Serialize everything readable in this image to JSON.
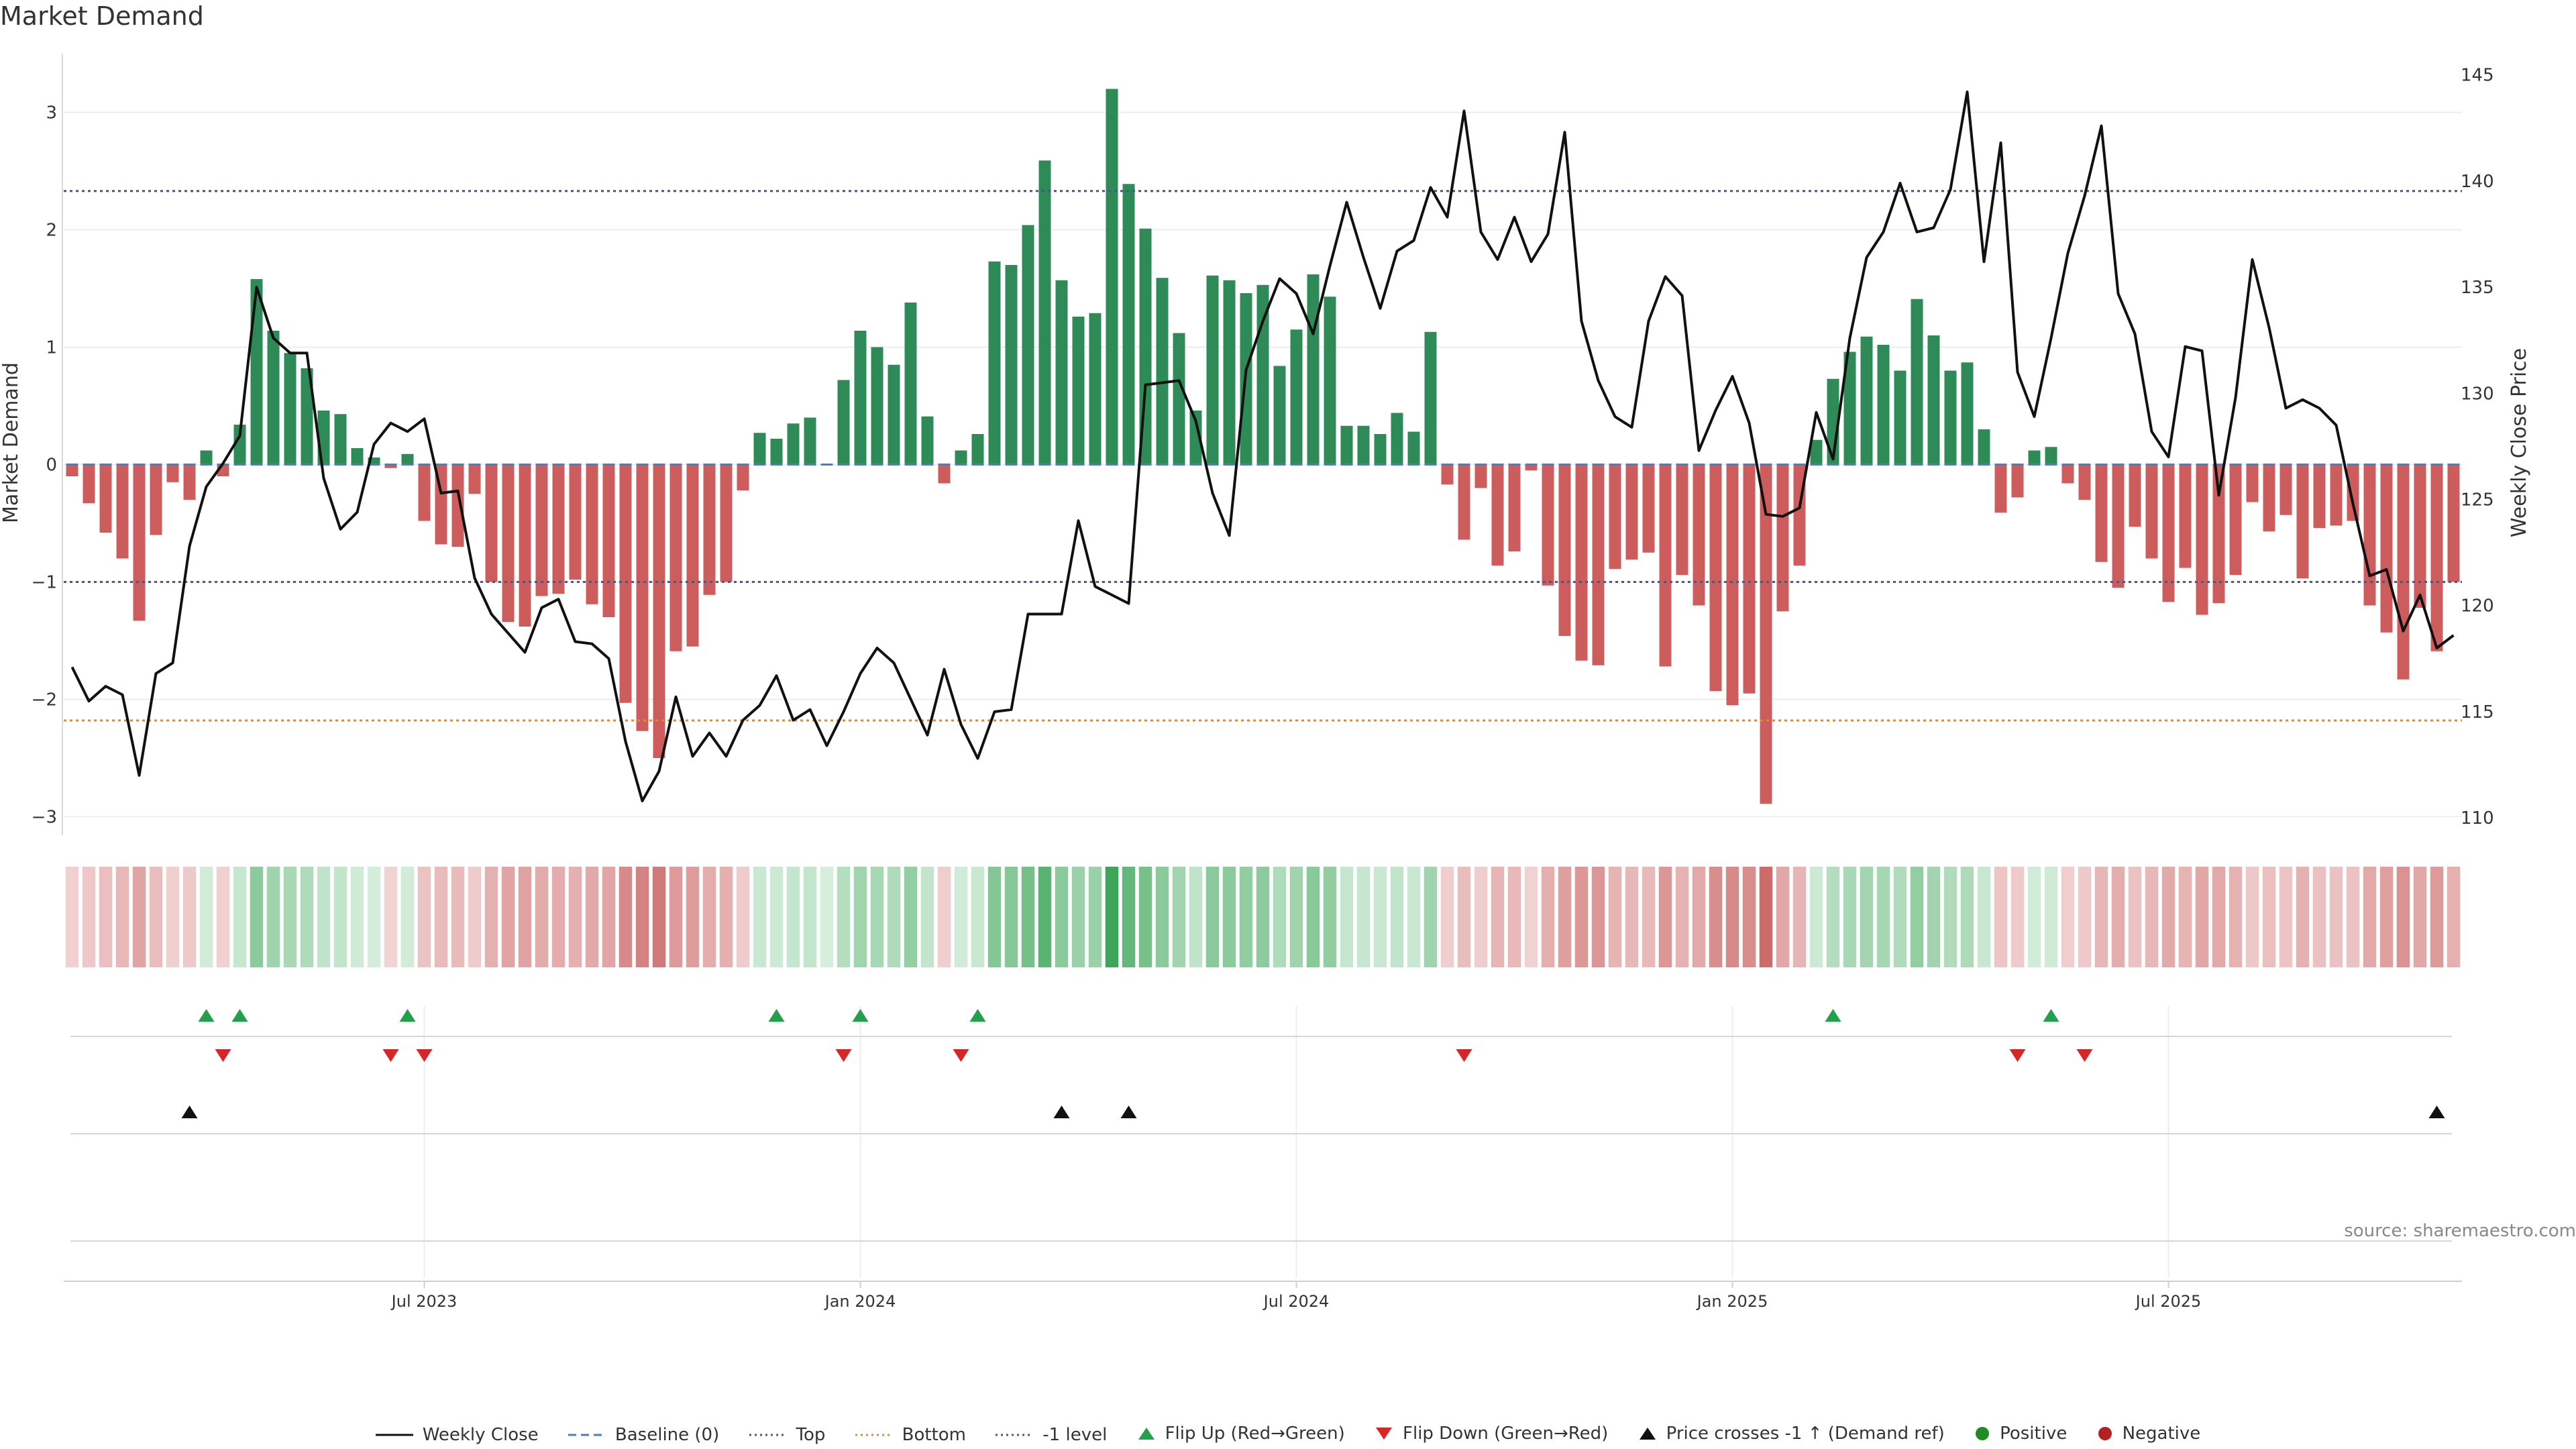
{
  "chart_data": {
    "type": "bar",
    "title": "Market Demand",
    "ylabel_left": "Market Demand",
    "ylabel_right": "Weekly Close Price",
    "ylim_left": [
      -3.1,
      3.5
    ],
    "ylim_right": [
      109.5,
      146
    ],
    "yticks_left": [
      3,
      2,
      1,
      0,
      -1,
      -2,
      -3
    ],
    "yticks_right": [
      145,
      140,
      135,
      130,
      125,
      120,
      115,
      110
    ],
    "x_tick_labels": [
      "Jul 2023",
      "Jan 2024",
      "Jul 2024",
      "Jan 2025",
      "Jul 2025"
    ],
    "x_tick_index": [
      21.5,
      47.5,
      73.5,
      99.5,
      125.5
    ],
    "reference_lines": [
      {
        "name": "Top",
        "value": 2.33,
        "color": "#4f4f9e",
        "style": "dotted"
      },
      {
        "name": "-1 level",
        "value": -1.0,
        "color": "#555577",
        "style": "dotted"
      },
      {
        "name": "Bottom",
        "value": -2.18,
        "color": "#e08a2e",
        "style": "dotted"
      }
    ],
    "demand": [
      -0.1,
      -0.33,
      -0.58,
      -0.8,
      -1.33,
      -0.6,
      -0.15,
      -0.3,
      0.12,
      -0.1,
      0.34,
      1.58,
      1.14,
      0.95,
      0.82,
      0.46,
      0.43,
      0.14,
      0.06,
      -0.03,
      0.09,
      -0.48,
      -0.68,
      -0.7,
      -0.25,
      -1.0,
      -1.34,
      -1.38,
      -1.12,
      -1.1,
      -0.98,
      -1.19,
      -1.3,
      -2.03,
      -2.27,
      -2.5,
      -1.59,
      -1.55,
      -1.11,
      -1.0,
      -0.22,
      0.27,
      0.22,
      0.35,
      0.4,
      0.0,
      0.72,
      1.14,
      1.0,
      0.85,
      1.38,
      0.41,
      -0.16,
      0.12,
      0.26,
      1.73,
      1.7,
      2.04,
      2.59,
      1.57,
      1.26,
      1.29,
      3.2,
      2.39,
      2.01,
      1.59,
      1.12,
      0.46,
      1.61,
      1.57,
      1.46,
      1.53,
      0.84,
      1.15,
      1.62,
      1.43,
      0.33,
      0.33,
      0.26,
      0.44,
      0.28,
      1.13,
      -0.17,
      -0.64,
      -0.2,
      -0.86,
      -0.74,
      -0.05,
      -1.03,
      -1.46,
      -1.67,
      -1.71,
      -0.89,
      -0.81,
      -0.75,
      -1.72,
      -0.94,
      -1.2,
      -1.93,
      -2.05,
      -1.95,
      -2.89,
      -1.25,
      -0.86,
      0.21,
      0.73,
      0.96,
      1.09,
      1.02,
      0.8,
      1.41,
      1.1,
      0.8,
      0.87,
      0.3,
      -0.41,
      -0.28,
      0.12,
      0.15,
      -0.16,
      -0.3,
      -0.83,
      -1.05,
      -0.53,
      -0.8,
      -1.17,
      -0.88,
      -1.28,
      -1.18,
      -0.94,
      -0.32,
      -0.57,
      -0.43,
      -0.97,
      -0.54,
      -0.52,
      -0.48,
      -1.2,
      -1.43,
      -1.83,
      -1.22,
      -1.59,
      -1.0
    ],
    "price": [
      117.1,
      115.5,
      116.2,
      115.8,
      112.0,
      116.8,
      117.3,
      122.8,
      125.6,
      126.7,
      128.0,
      135.0,
      132.6,
      131.9,
      131.9,
      126.0,
      123.6,
      124.4,
      127.6,
      128.6,
      128.2,
      128.8,
      125.3,
      125.4,
      121.3,
      119.6,
      118.7,
      117.8,
      119.9,
      120.3,
      118.3,
      118.2,
      117.5,
      113.6,
      110.8,
      112.2,
      115.7,
      112.9,
      114.0,
      112.9,
      114.6,
      115.3,
      116.7,
      114.6,
      115.1,
      113.4,
      115.0,
      116.8,
      118.0,
      117.3,
      115.6,
      113.9,
      117.0,
      114.4,
      112.8,
      115.0,
      115.1,
      119.6,
      119.6,
      119.6,
      124.0,
      120.9,
      120.5,
      120.1,
      130.4,
      130.5,
      130.6,
      128.7,
      125.3,
      123.3,
      131.1,
      133.4,
      135.4,
      134.7,
      132.8,
      136.0,
      139.0,
      136.4,
      134.0,
      136.7,
      137.2,
      139.7,
      138.3,
      143.3,
      137.6,
      136.3,
      138.3,
      136.2,
      137.5,
      142.3,
      133.4,
      130.6,
      128.9,
      128.4,
      133.4,
      135.5,
      134.6,
      127.3,
      129.2,
      130.8,
      128.6,
      124.3,
      124.2,
      124.6,
      129.1,
      126.9,
      132.6,
      136.4,
      137.6,
      139.9,
      137.6,
      137.8,
      139.6,
      144.2,
      136.2,
      141.8,
      131.0,
      128.9,
      132.6,
      136.6,
      139.3,
      142.6,
      134.7,
      132.8,
      128.2,
      127.0,
      132.2,
      132.0,
      125.2,
      129.8,
      136.3,
      133.1,
      129.3,
      129.7,
      129.3,
      128.5,
      124.8,
      121.4,
      121.7,
      118.8,
      120.5,
      118.0,
      118.6
    ],
    "flip_up_index": [
      8,
      10,
      20,
      42,
      47,
      54,
      105,
      118
    ],
    "flip_down_index": [
      9,
      19,
      21,
      46,
      53,
      83,
      116,
      120
    ],
    "price_cross_index": [
      7,
      59,
      63,
      141
    ],
    "legend": [
      "Weekly Close",
      "Baseline (0)",
      "Top",
      "Bottom",
      "-1 level",
      "Flip Up (Red→Green)",
      "Flip Down (Green→Red)",
      "Price crosses -1 ↑ (Demand ref)",
      "Positive",
      "Negative"
    ],
    "source": "source: sharemaestro.com"
  },
  "colors": {
    "positive": "#2e8b57",
    "negative": "#cd5c5c",
    "price_line": "#111111",
    "baseline": "#4a7fc0",
    "flip_up": "#22a04b",
    "flip_down": "#d62728",
    "cross": "#111111",
    "legend_positive_dot": "#228b22",
    "legend_negative_dot": "#b22222"
  }
}
